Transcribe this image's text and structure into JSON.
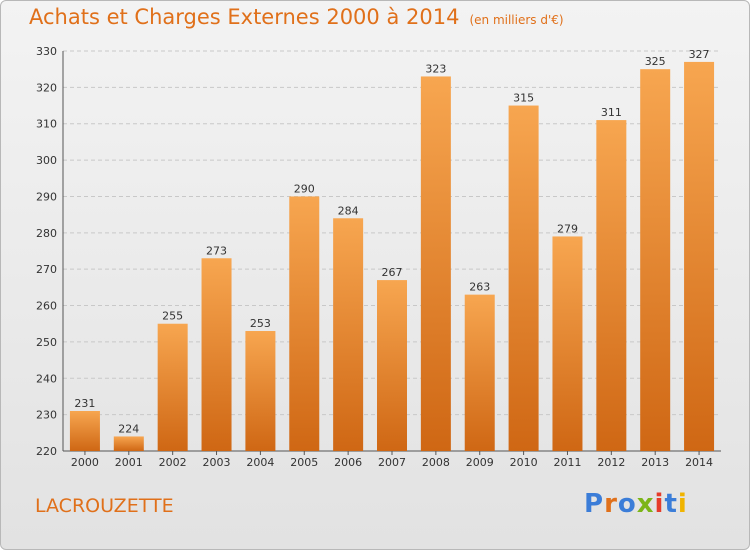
{
  "header": {
    "title": "Achats et Charges Externes 2000 à 2014",
    "unit": "(en milliers d'€)"
  },
  "footer": {
    "commune": "LACROUZETTE",
    "logo": "Proxiti"
  },
  "colors": {
    "accent": "#e0701a",
    "bar_top": "#f7a650",
    "bar_bottom": "#cf6714",
    "grid": "#c8c8c8"
  },
  "chart_data": {
    "type": "bar",
    "categories": [
      "2000",
      "2001",
      "2002",
      "2003",
      "2004",
      "2005",
      "2006",
      "2007",
      "2008",
      "2009",
      "2010",
      "2011",
      "2012",
      "2013",
      "2014"
    ],
    "values": [
      231,
      224,
      255,
      273,
      253,
      290,
      284,
      267,
      323,
      263,
      315,
      279,
      311,
      325,
      327
    ],
    "title": "Achats et Charges Externes 2000 à 2014",
    "xlabel": "",
    "ylabel": "",
    "ylim": [
      220,
      330
    ],
    "yticks": [
      220,
      230,
      240,
      250,
      260,
      270,
      280,
      290,
      300,
      310,
      320,
      330
    ],
    "grid": true,
    "data_labels": true
  }
}
